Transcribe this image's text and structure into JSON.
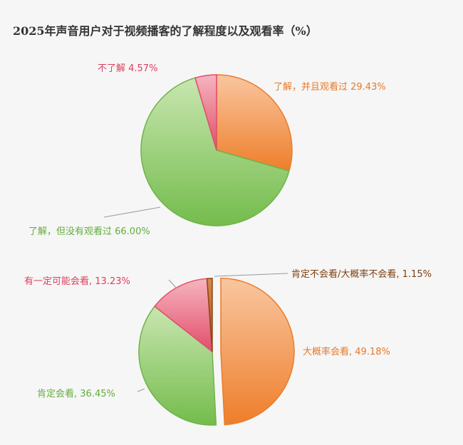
{
  "page": {
    "title": "2025年声音用户对于视频播客的了解程度以及观看率（%）"
  },
  "chart_data": [
    {
      "type": "pie",
      "title": "",
      "slices": [
        {
          "label": "了解，并且观看过",
          "value": 29.43,
          "display": "了解，并且观看过 29.43%",
          "color": "#f08a3c"
        },
        {
          "label": "了解，但没有观看过",
          "value": 66.0,
          "display": "了解，但没有观看过  66.00%",
          "color": "#86c662"
        },
        {
          "label": "不了解",
          "value": 4.57,
          "display": "不了解 4.57%",
          "color": "#e8637c"
        }
      ]
    },
    {
      "type": "pie",
      "title": "",
      "slices": [
        {
          "label": "大概率会看",
          "value": 49.18,
          "display": "大概率会看, 49.18%",
          "color": "#f08a3c"
        },
        {
          "label": "肯定会看",
          "value": 36.45,
          "display": "肯定会看, 36.45%",
          "color": "#86c662"
        },
        {
          "label": "有一定可能会看",
          "value": 13.23,
          "display": "有一定可能会看, 13.23%",
          "color": "#e8637c"
        },
        {
          "label": "肯定不会看/大概率不会看",
          "value": 1.15,
          "display": "肯定不会看/大概率不会看, 1.15%",
          "color": "#a5561d"
        }
      ]
    }
  ]
}
